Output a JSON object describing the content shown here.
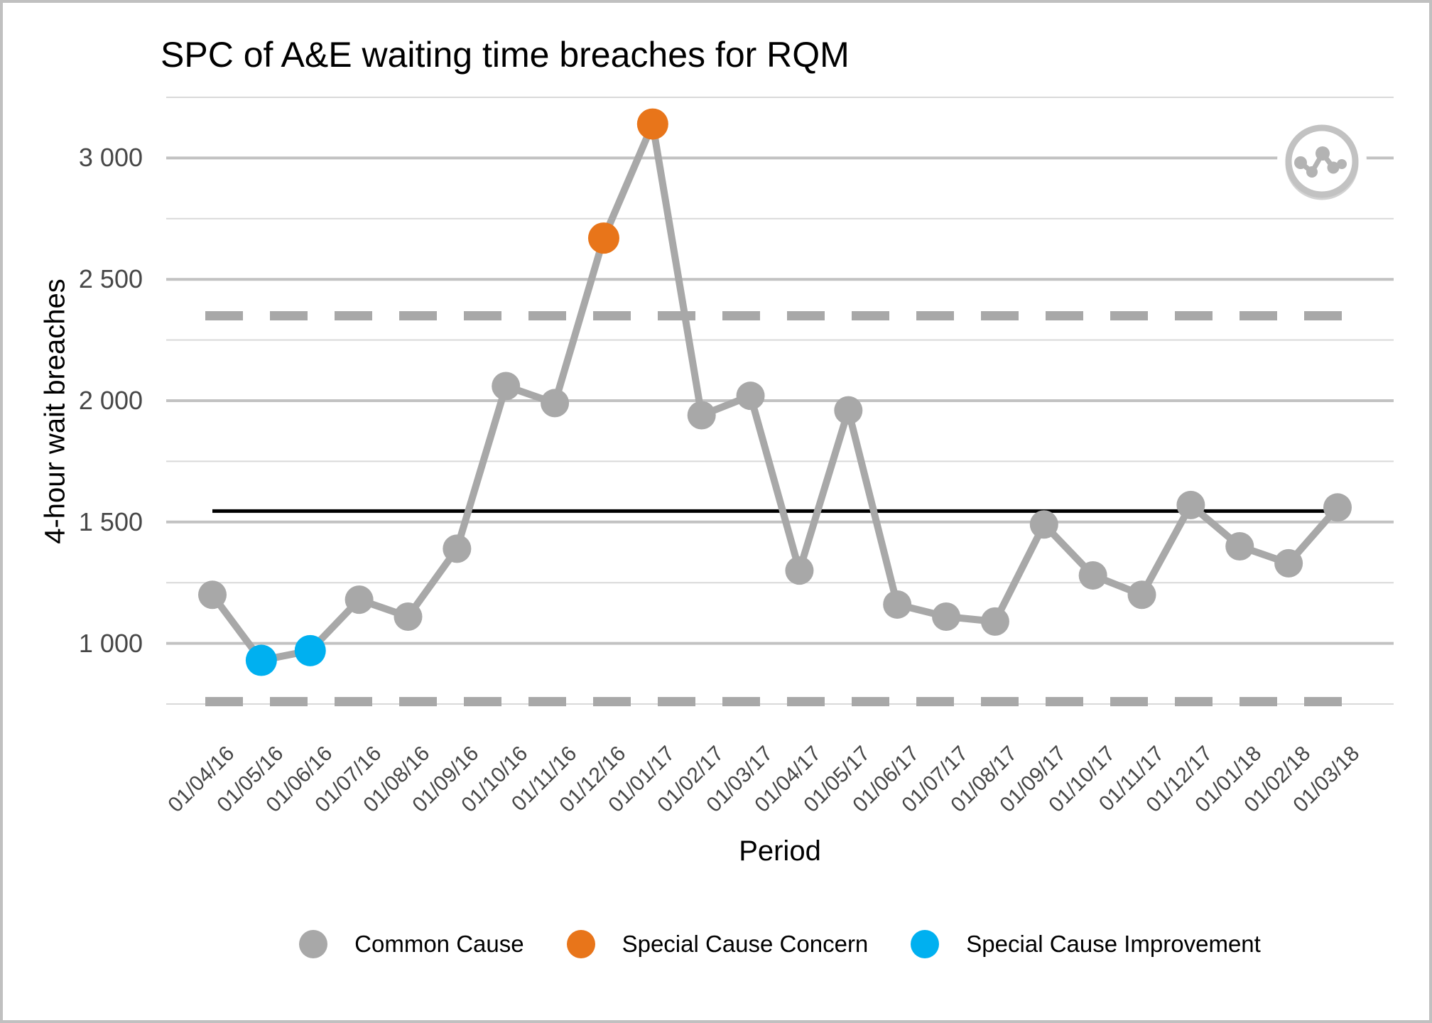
{
  "window": {
    "background": "#ffffff",
    "border_color": "#c0c0c0"
  },
  "chart_data": {
    "type": "line",
    "subtype": "spc-control-chart",
    "title": "SPC of A&E waiting time breaches for RQM",
    "xlabel": "Period",
    "ylabel": "4-hour wait breaches",
    "x": [
      "01/04/16",
      "01/05/16",
      "01/06/16",
      "01/07/16",
      "01/08/16",
      "01/09/16",
      "01/10/16",
      "01/11/16",
      "01/12/16",
      "01/01/17",
      "01/02/17",
      "01/03/17",
      "01/04/17",
      "01/05/17",
      "01/06/17",
      "01/07/17",
      "01/08/17",
      "01/09/17",
      "01/10/17",
      "01/11/17",
      "01/12/17",
      "01/01/18",
      "01/02/18",
      "01/03/18"
    ],
    "series": [
      {
        "name": "4-hour wait breaches",
        "values": [
          1200,
          930,
          970,
          1180,
          1110,
          1390,
          2060,
          1990,
          2670,
          3140,
          1940,
          2020,
          1300,
          1960,
          1160,
          1110,
          1090,
          1490,
          1280,
          1200,
          1570,
          1400,
          1330,
          1560
        ],
        "point_classes": [
          "common",
          "improvement",
          "improvement",
          "common",
          "common",
          "common",
          "common",
          "common",
          "concern",
          "concern",
          "common",
          "common",
          "common",
          "common",
          "common",
          "common",
          "common",
          "common",
          "common",
          "common",
          "common",
          "common",
          "common",
          "common"
        ]
      }
    ],
    "control_lines": {
      "mean": 1545,
      "upper_control_limit": 2350,
      "lower_control_limit": 760,
      "mean_style": "solid-black",
      "limit_style": "dashed-grey"
    },
    "y_ticks": [
      {
        "value": 1000,
        "label": "1 000"
      },
      {
        "value": 1500,
        "label": "1 500"
      },
      {
        "value": 2000,
        "label": "2 000"
      },
      {
        "value": 2500,
        "label": "2 500"
      },
      {
        "value": 3000,
        "label": "3 000"
      }
    ],
    "y_minor_gridlines": [
      750,
      1250,
      1750,
      2250,
      2750,
      3250
    ],
    "ylim": [
      650,
      3260
    ],
    "grid": "horizontal-only",
    "legend_position": "bottom",
    "legend": [
      {
        "key": "common",
        "label": "Common Cause",
        "color": "#a8a8a8"
      },
      {
        "key": "concern",
        "label": "Special Cause Concern",
        "color": "#e8751a"
      },
      {
        "key": "improvement",
        "label": "Special Cause Improvement",
        "color": "#00b0f0"
      }
    ],
    "colors": {
      "series_line": "#a8a8a8",
      "common": "#a8a8a8",
      "concern": "#e8751a",
      "improvement": "#00b0f0",
      "mean_line": "#000000",
      "limit_line": "#a8a8a8",
      "grid_major": "#c2c2c2",
      "grid_minor": "#d9d9d9",
      "tick_text": "#474747"
    }
  },
  "watermark_icon": {
    "name": "line-chart-icon",
    "ring_color": "#c2c2c2",
    "glyph_color": "#b3b3b3"
  }
}
